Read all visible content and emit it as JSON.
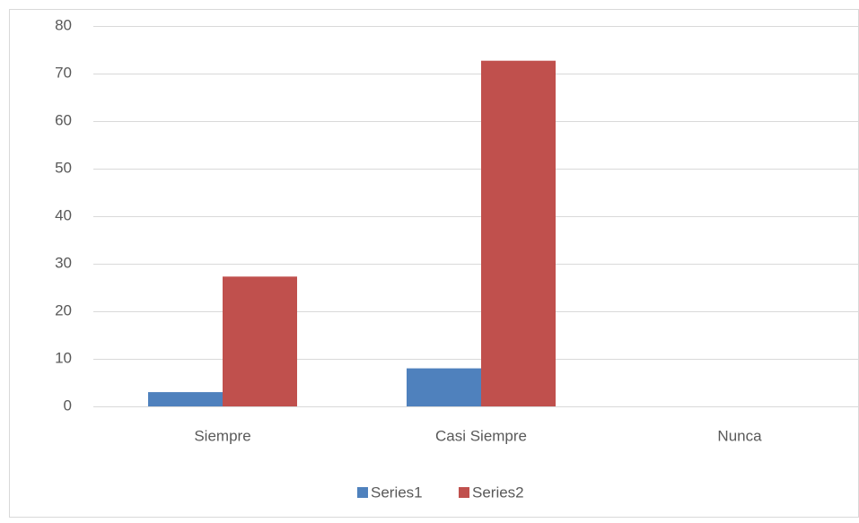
{
  "chart_data": {
    "type": "bar",
    "categories": [
      "Siempre",
      "Casi Siempre",
      "Nunca"
    ],
    "series": [
      {
        "name": "Series1",
        "color": "#4f81bd",
        "values": [
          3,
          8,
          0
        ]
      },
      {
        "name": "Series2",
        "color": "#c0504d",
        "values": [
          27.3,
          72.7,
          0
        ]
      }
    ],
    "ylim": [
      0,
      80
    ],
    "yticks": [
      0,
      10,
      20,
      30,
      40,
      50,
      60,
      70,
      80
    ],
    "grid": true,
    "legend": "bottom"
  }
}
